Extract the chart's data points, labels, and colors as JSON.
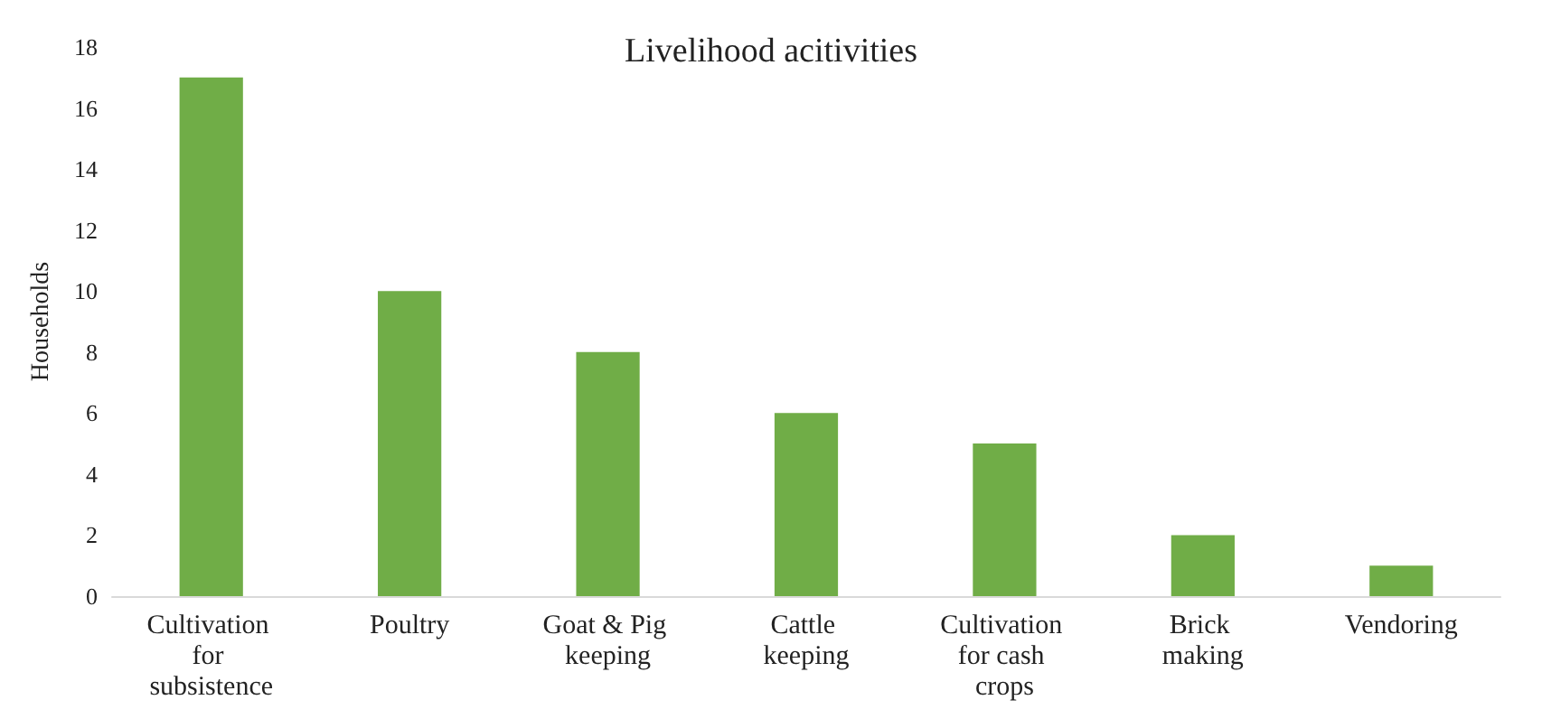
{
  "chart_data": {
    "type": "bar",
    "title": "Livelihood acitivities",
    "ylabel": "Households",
    "categories": [
      "Cultivation for subsistence",
      "Poultry",
      "Goat & Pig keeping",
      "Cattle keeping",
      "Cultivation for cash crops",
      "Brick making",
      "Vendoring"
    ],
    "values": [
      17,
      10,
      8,
      6,
      5,
      2,
      1
    ],
    "color": "#70ad47",
    "ylim": [
      0,
      18
    ],
    "yticks": [
      0,
      2,
      4,
      6,
      8,
      10,
      12,
      14,
      16,
      18
    ],
    "grid": false
  }
}
